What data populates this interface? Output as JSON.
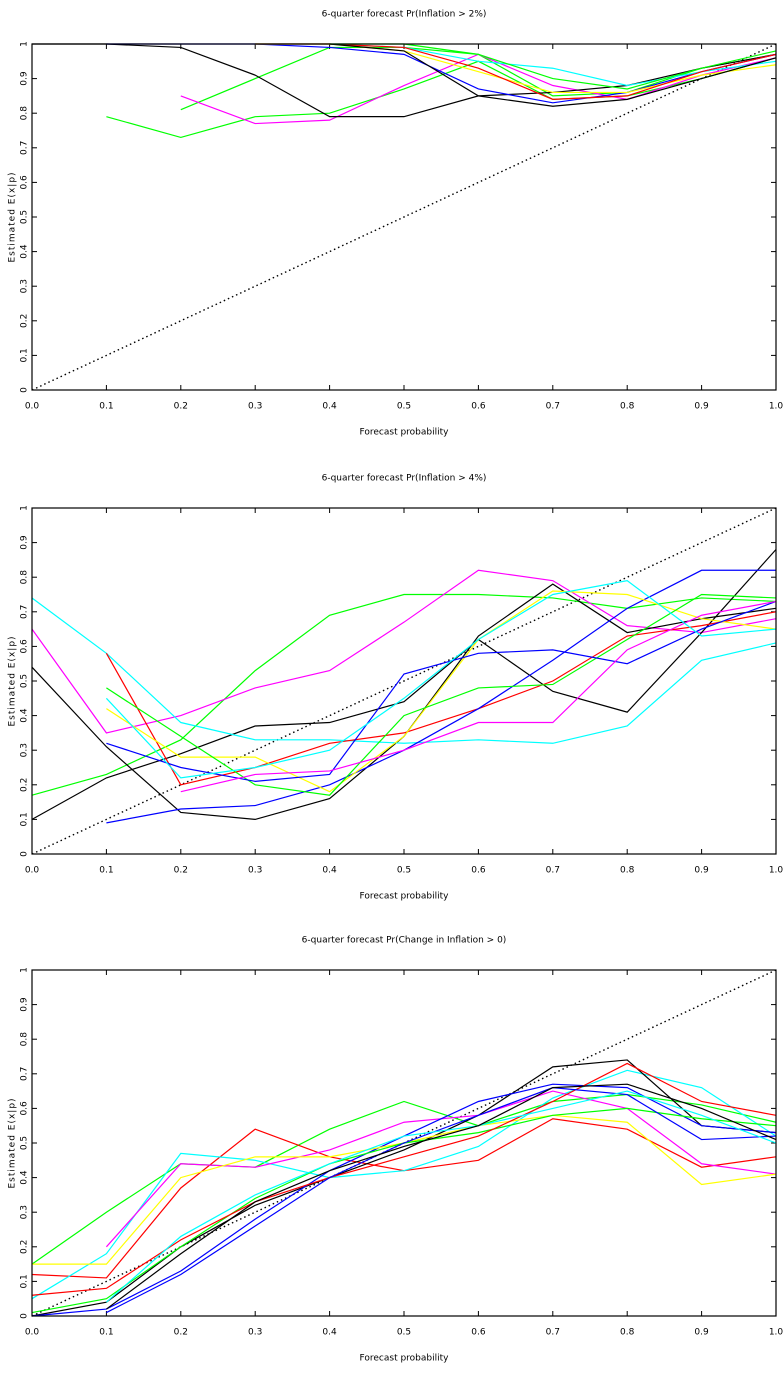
{
  "chart_data": [
    {
      "type": "line",
      "title": "6-quarter forecast Pr(Inflation > 2%)",
      "xlabel": "Forecast probability",
      "ylabel": "Estimated E(x|p)",
      "x": [
        0,
        0.1,
        0.2,
        0.3,
        0.4,
        0.5,
        0.6,
        0.7,
        0.8,
        0.9,
        1.0
      ],
      "xlim": [
        0,
        1
      ],
      "ylim": [
        0,
        1
      ],
      "xticks": [
        {
          "value": 0,
          "label": "0.0"
        },
        0.1,
        0.2,
        0.3,
        0.4,
        0.5,
        0.6,
        0.7,
        0.8,
        0.9,
        {
          "value": 1,
          "label": "1.0"
        }
      ],
      "yticks": [
        0,
        0.1,
        0.2,
        0.3,
        0.4,
        0.5,
        0.6,
        0.7,
        0.8,
        0.9,
        1
      ],
      "diagonal": true,
      "series": [
        {
          "color": "#00ff00",
          "values": [
            null,
            0.79,
            0.73,
            0.79,
            0.8,
            0.87,
            0.95,
            0.84,
            0.85,
            0.9,
            0.96
          ]
        },
        {
          "color": "#00ff00",
          "values": [
            null,
            null,
            0.81,
            0.9,
            0.99,
            0.99,
            0.97,
            0.85,
            0.86,
            0.93,
            0.97
          ]
        },
        {
          "color": "#ff00ff",
          "values": [
            null,
            null,
            0.85,
            0.77,
            0.78,
            0.88,
            0.97,
            0.88,
            0.84,
            0.91,
            0.96
          ]
        },
        {
          "color": "#000000",
          "values": [
            1,
            1,
            0.99,
            0.91,
            0.79,
            0.79,
            0.85,
            0.86,
            0.88,
            0.93,
            0.97
          ]
        },
        {
          "color": "#0000ff",
          "values": [
            null,
            1,
            1,
            1,
            0.99,
            0.97,
            0.87,
            0.83,
            0.86,
            0.92,
            0.97
          ]
        },
        {
          "color": "#00ffff",
          "values": [
            null,
            null,
            null,
            1,
            1,
            0.99,
            0.95,
            0.93,
            0.88,
            0.92,
            0.95
          ]
        },
        {
          "color": "#ffff00",
          "values": [
            null,
            null,
            null,
            1,
            1,
            0.98,
            0.92,
            0.86,
            0.86,
            0.91,
            0.94
          ]
        },
        {
          "color": "#ff0000",
          "values": [
            null,
            null,
            null,
            1,
            1,
            0.99,
            0.93,
            0.84,
            0.85,
            0.92,
            0.97
          ]
        },
        {
          "color": "#000000",
          "values": [
            null,
            null,
            null,
            null,
            1,
            0.98,
            0.85,
            0.82,
            0.84,
            0.9,
            0.96
          ]
        },
        {
          "color": "#00ff00",
          "values": [
            null,
            null,
            null,
            null,
            1,
            1,
            0.97,
            0.9,
            0.87,
            0.93,
            0.98
          ]
        }
      ]
    },
    {
      "type": "line",
      "title": "6-quarter forecast Pr(Inflation > 4%)",
      "xlabel": "Forecast probability",
      "ylabel": "Estimated E(x|p)",
      "x": [
        0,
        0.1,
        0.2,
        0.3,
        0.4,
        0.5,
        0.6,
        0.7,
        0.8,
        0.9,
        1.0
      ],
      "xlim": [
        0,
        1
      ],
      "ylim": [
        0,
        1
      ],
      "xticks": [
        {
          "value": 0,
          "label": "0.0"
        },
        0.1,
        0.2,
        0.3,
        0.4,
        0.5,
        0.6,
        0.7,
        0.8,
        0.9,
        {
          "value": 1,
          "label": "1.0"
        }
      ],
      "yticks": [
        0,
        0.1,
        0.2,
        0.3,
        0.4,
        0.5,
        0.6,
        0.7,
        0.8,
        0.9,
        1
      ],
      "diagonal": true,
      "series": [
        {
          "color": "#00ff00",
          "values": [
            0.17,
            0.23,
            0.33,
            0.53,
            0.69,
            0.75,
            0.75,
            0.74,
            0.71,
            0.74,
            0.73
          ]
        },
        {
          "color": "#ff00ff",
          "values": [
            0.65,
            0.35,
            0.4,
            0.48,
            0.53,
            0.67,
            0.82,
            0.79,
            0.66,
            0.64,
            0.68
          ]
        },
        {
          "color": "#000000",
          "values": [
            0.54,
            0.31,
            0.12,
            0.1,
            0.16,
            0.34,
            0.63,
            0.78,
            0.64,
            0.68,
            0.71
          ]
        },
        {
          "color": "#000000",
          "values": [
            0.1,
            0.22,
            0.29,
            0.37,
            0.38,
            0.44,
            0.62,
            0.47,
            0.41,
            0.64,
            0.88
          ]
        },
        {
          "color": "#00ffff",
          "values": [
            0.74,
            0.58,
            0.38,
            0.33,
            0.33,
            0.32,
            0.33,
            0.32,
            0.37,
            0.56,
            0.61
          ]
        },
        {
          "color": "#ff0000",
          "values": [
            null,
            0.58,
            0.2,
            0.25,
            0.32,
            0.35,
            0.42,
            0.5,
            0.63,
            0.66,
            0.7
          ]
        },
        {
          "color": "#0000ff",
          "values": [
            null,
            0.09,
            0.13,
            0.14,
            0.2,
            0.3,
            0.42,
            0.56,
            0.71,
            0.82,
            0.82
          ]
        },
        {
          "color": "#ffff00",
          "values": [
            null,
            0.42,
            0.28,
            0.28,
            0.18,
            0.34,
            0.62,
            0.76,
            0.75,
            0.68,
            0.65
          ]
        },
        {
          "color": "#00ff00",
          "values": [
            null,
            0.48,
            0.34,
            0.2,
            0.17,
            0.4,
            0.48,
            0.49,
            0.62,
            0.75,
            0.74
          ]
        },
        {
          "color": "#0000ff",
          "values": [
            null,
            0.32,
            0.25,
            0.21,
            0.23,
            0.52,
            0.58,
            0.59,
            0.55,
            0.65,
            0.73
          ]
        },
        {
          "color": "#ff00ff",
          "values": [
            null,
            null,
            0.18,
            0.23,
            0.24,
            0.3,
            0.38,
            0.38,
            0.59,
            0.69,
            0.73
          ]
        },
        {
          "color": "#00ffff",
          "values": [
            null,
            0.45,
            0.22,
            0.25,
            0.3,
            0.45,
            0.62,
            0.75,
            0.79,
            0.63,
            0.65
          ]
        }
      ]
    },
    {
      "type": "line",
      "title": "6-quarter forecast Pr(Change in Inflation > 0)",
      "xlabel": "Forecast probability",
      "ylabel": "Estimated E(x|p)",
      "x": [
        0,
        0.1,
        0.2,
        0.3,
        0.4,
        0.5,
        0.6,
        0.7,
        0.8,
        0.9,
        1.0
      ],
      "xlim": [
        0,
        1
      ],
      "ylim": [
        0,
        1
      ],
      "xticks": [
        {
          "value": 0,
          "label": "0.0"
        },
        0.1,
        0.2,
        0.3,
        0.4,
        0.5,
        0.6,
        0.7,
        0.8,
        0.9,
        {
          "value": 1,
          "label": "1.0"
        }
      ],
      "yticks": [
        0,
        0.1,
        0.2,
        0.3,
        0.4,
        0.5,
        0.6,
        0.7,
        0.8,
        0.9,
        1
      ],
      "diagonal": true,
      "series": [
        {
          "color": "#00ff00",
          "values": [
            0.15,
            0.3,
            0.44,
            0.43,
            0.54,
            0.62,
            0.55,
            0.62,
            0.64,
            0.61,
            0.56
          ]
        },
        {
          "color": "#ff0000",
          "values": [
            0.12,
            0.11,
            0.37,
            0.54,
            0.46,
            0.42,
            0.45,
            0.57,
            0.54,
            0.43,
            0.46
          ]
        },
        {
          "color": "#00ffff",
          "values": [
            0.05,
            0.18,
            0.47,
            0.45,
            0.4,
            0.42,
            0.49,
            0.63,
            0.71,
            0.66,
            0.52
          ]
        },
        {
          "color": "#ff00ff",
          "values": [
            null,
            0.2,
            0.44,
            0.43,
            0.48,
            0.56,
            0.58,
            0.65,
            0.6,
            0.44,
            0.41
          ]
        },
        {
          "color": "#000000",
          "values": [
            0,
            0.04,
            0.2,
            0.32,
            0.4,
            0.48,
            0.58,
            0.72,
            0.74,
            0.55,
            0.53
          ]
        },
        {
          "color": "#0000ff",
          "values": [
            0,
            0.02,
            0.13,
            0.28,
            0.42,
            0.52,
            0.62,
            0.67,
            0.66,
            0.55,
            0.53
          ]
        },
        {
          "color": "#ffff00",
          "values": [
            0.15,
            0.15,
            0.4,
            0.46,
            0.46,
            0.5,
            0.55,
            0.58,
            0.56,
            0.38,
            0.41
          ]
        },
        {
          "color": "#00ff00",
          "values": [
            0.01,
            0.05,
            0.2,
            0.34,
            0.44,
            0.5,
            0.53,
            0.58,
            0.6,
            0.57,
            0.55
          ]
        },
        {
          "color": "#ff0000",
          "values": [
            0.06,
            0.08,
            0.22,
            0.33,
            0.4,
            0.46,
            0.52,
            0.62,
            0.73,
            0.62,
            0.58
          ]
        },
        {
          "color": "#0000ff",
          "values": [
            null,
            0.01,
            0.12,
            0.26,
            0.4,
            0.5,
            0.58,
            0.66,
            0.64,
            0.51,
            0.52
          ]
        },
        {
          "color": "#00ffff",
          "values": [
            null,
            0.04,
            0.23,
            0.35,
            0.44,
            0.52,
            0.55,
            0.6,
            0.65,
            0.58,
            0.5
          ]
        },
        {
          "color": "#000000",
          "values": [
            null,
            0.02,
            0.18,
            0.33,
            0.42,
            0.49,
            0.55,
            0.66,
            0.67,
            0.6,
            0.51
          ]
        }
      ]
    }
  ]
}
